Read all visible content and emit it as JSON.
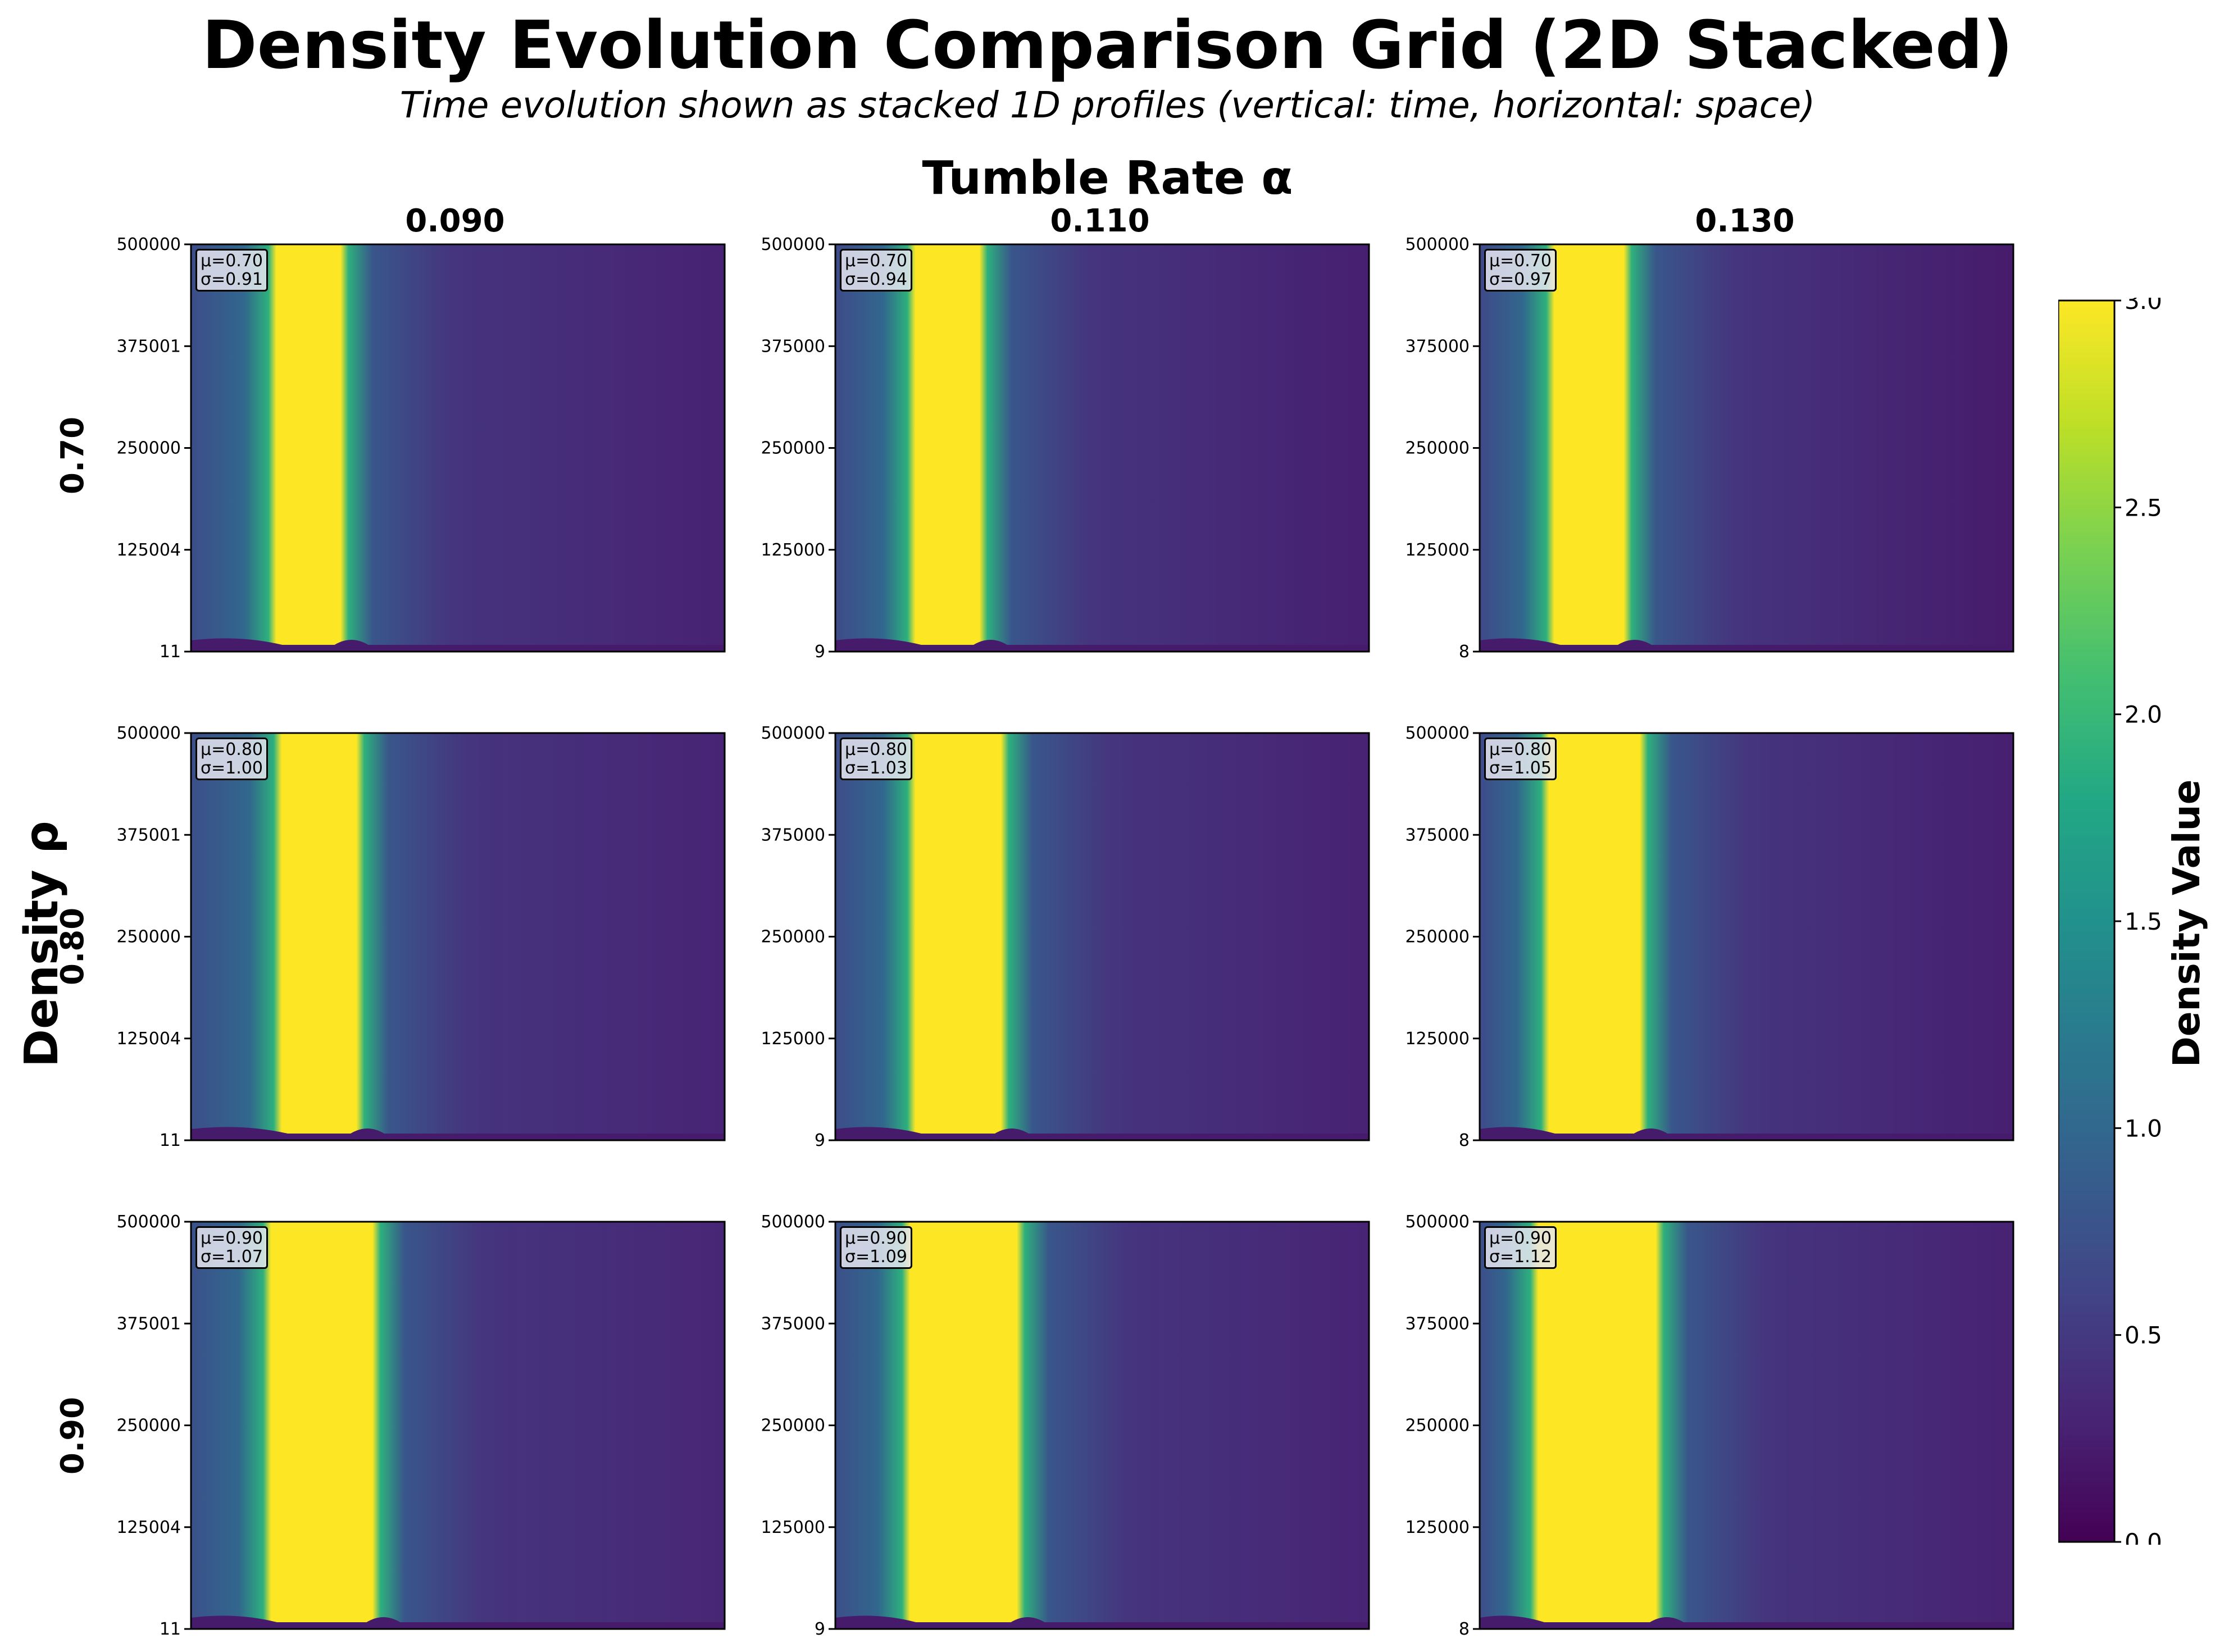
{
  "title": "Density Evolution Comparison Grid (2D Stacked)",
  "subtitle": "Time evolution shown as stacked 1D profiles (vertical: time, horizontal: space)",
  "col_super_label": "Tumble Rate α",
  "row_super_label": "Density ρ",
  "colorbar": {
    "label": "Density Value",
    "colormap": "viridis",
    "range": [
      0.0,
      3.0
    ],
    "ticks": [
      "0.0",
      "0.5",
      "1.0",
      "1.5",
      "2.0",
      "2.5",
      "3.0"
    ]
  },
  "chart_data": {
    "type": "heatmap",
    "title": "Density Evolution Comparison Grid (2D Stacked)",
    "x_dimension": "space",
    "y_dimension": "time",
    "columns": [
      {
        "alpha": "0.090"
      },
      {
        "alpha": "0.110"
      },
      {
        "alpha": "0.130"
      }
    ],
    "rows": [
      {
        "rho": "0.70"
      },
      {
        "rho": "0.80"
      },
      {
        "rho": "0.90"
      }
    ],
    "panels": [
      {
        "row": 0,
        "col": 0,
        "mu": "μ=0.70",
        "sigma": "σ=0.91",
        "yticks": [
          "11",
          "125004",
          "250000",
          "375001",
          "500000"
        ],
        "band_start": 0.15,
        "band_end": 0.29,
        "base_left": 0.7,
        "base_right": 0.28
      },
      {
        "row": 0,
        "col": 1,
        "mu": "μ=0.70",
        "sigma": "σ=0.94",
        "yticks": [
          "9",
          "125000",
          "250000",
          "375000",
          "500000"
        ],
        "band_start": 0.14,
        "band_end": 0.28,
        "base_left": 0.68,
        "base_right": 0.26
      },
      {
        "row": 0,
        "col": 2,
        "mu": "μ=0.70",
        "sigma": "σ=0.97",
        "yticks": [
          "8",
          "125000",
          "250000",
          "375000",
          "500000"
        ],
        "band_start": 0.13,
        "band_end": 0.28,
        "base_left": 0.66,
        "base_right": 0.22
      },
      {
        "row": 1,
        "col": 0,
        "mu": "μ=0.80",
        "sigma": "σ=1.00",
        "yticks": [
          "11",
          "125004",
          "250000",
          "375001",
          "500000"
        ],
        "band_start": 0.16,
        "band_end": 0.32,
        "base_left": 0.72,
        "base_right": 0.3
      },
      {
        "row": 1,
        "col": 1,
        "mu": "μ=0.80",
        "sigma": "σ=1.03",
        "yticks": [
          "9",
          "125000",
          "250000",
          "375000",
          "500000"
        ],
        "band_start": 0.14,
        "band_end": 0.32,
        "base_left": 0.7,
        "base_right": 0.28
      },
      {
        "row": 1,
        "col": 2,
        "mu": "μ=0.80",
        "sigma": "σ=1.05",
        "yticks": [
          "8",
          "125000",
          "250000",
          "375000",
          "500000"
        ],
        "band_start": 0.12,
        "band_end": 0.31,
        "base_left": 0.68,
        "base_right": 0.26
      },
      {
        "row": 2,
        "col": 0,
        "mu": "μ=0.90",
        "sigma": "σ=1.07",
        "yticks": [
          "11",
          "125004",
          "250000",
          "375001",
          "500000"
        ],
        "band_start": 0.14,
        "band_end": 0.35,
        "base_left": 0.74,
        "base_right": 0.32
      },
      {
        "row": 2,
        "col": 1,
        "mu": "μ=0.90",
        "sigma": "σ=1.09",
        "yticks": [
          "9",
          "125000",
          "250000",
          "375000",
          "500000"
        ],
        "band_start": 0.13,
        "band_end": 0.35,
        "base_left": 0.72,
        "base_right": 0.3
      },
      {
        "row": 2,
        "col": 2,
        "mu": "μ=0.90",
        "sigma": "σ=1.12",
        "yticks": [
          "8",
          "125000",
          "250000",
          "375000",
          "500000"
        ],
        "band_start": 0.1,
        "band_end": 0.34,
        "base_left": 0.7,
        "base_right": 0.28
      }
    ]
  }
}
